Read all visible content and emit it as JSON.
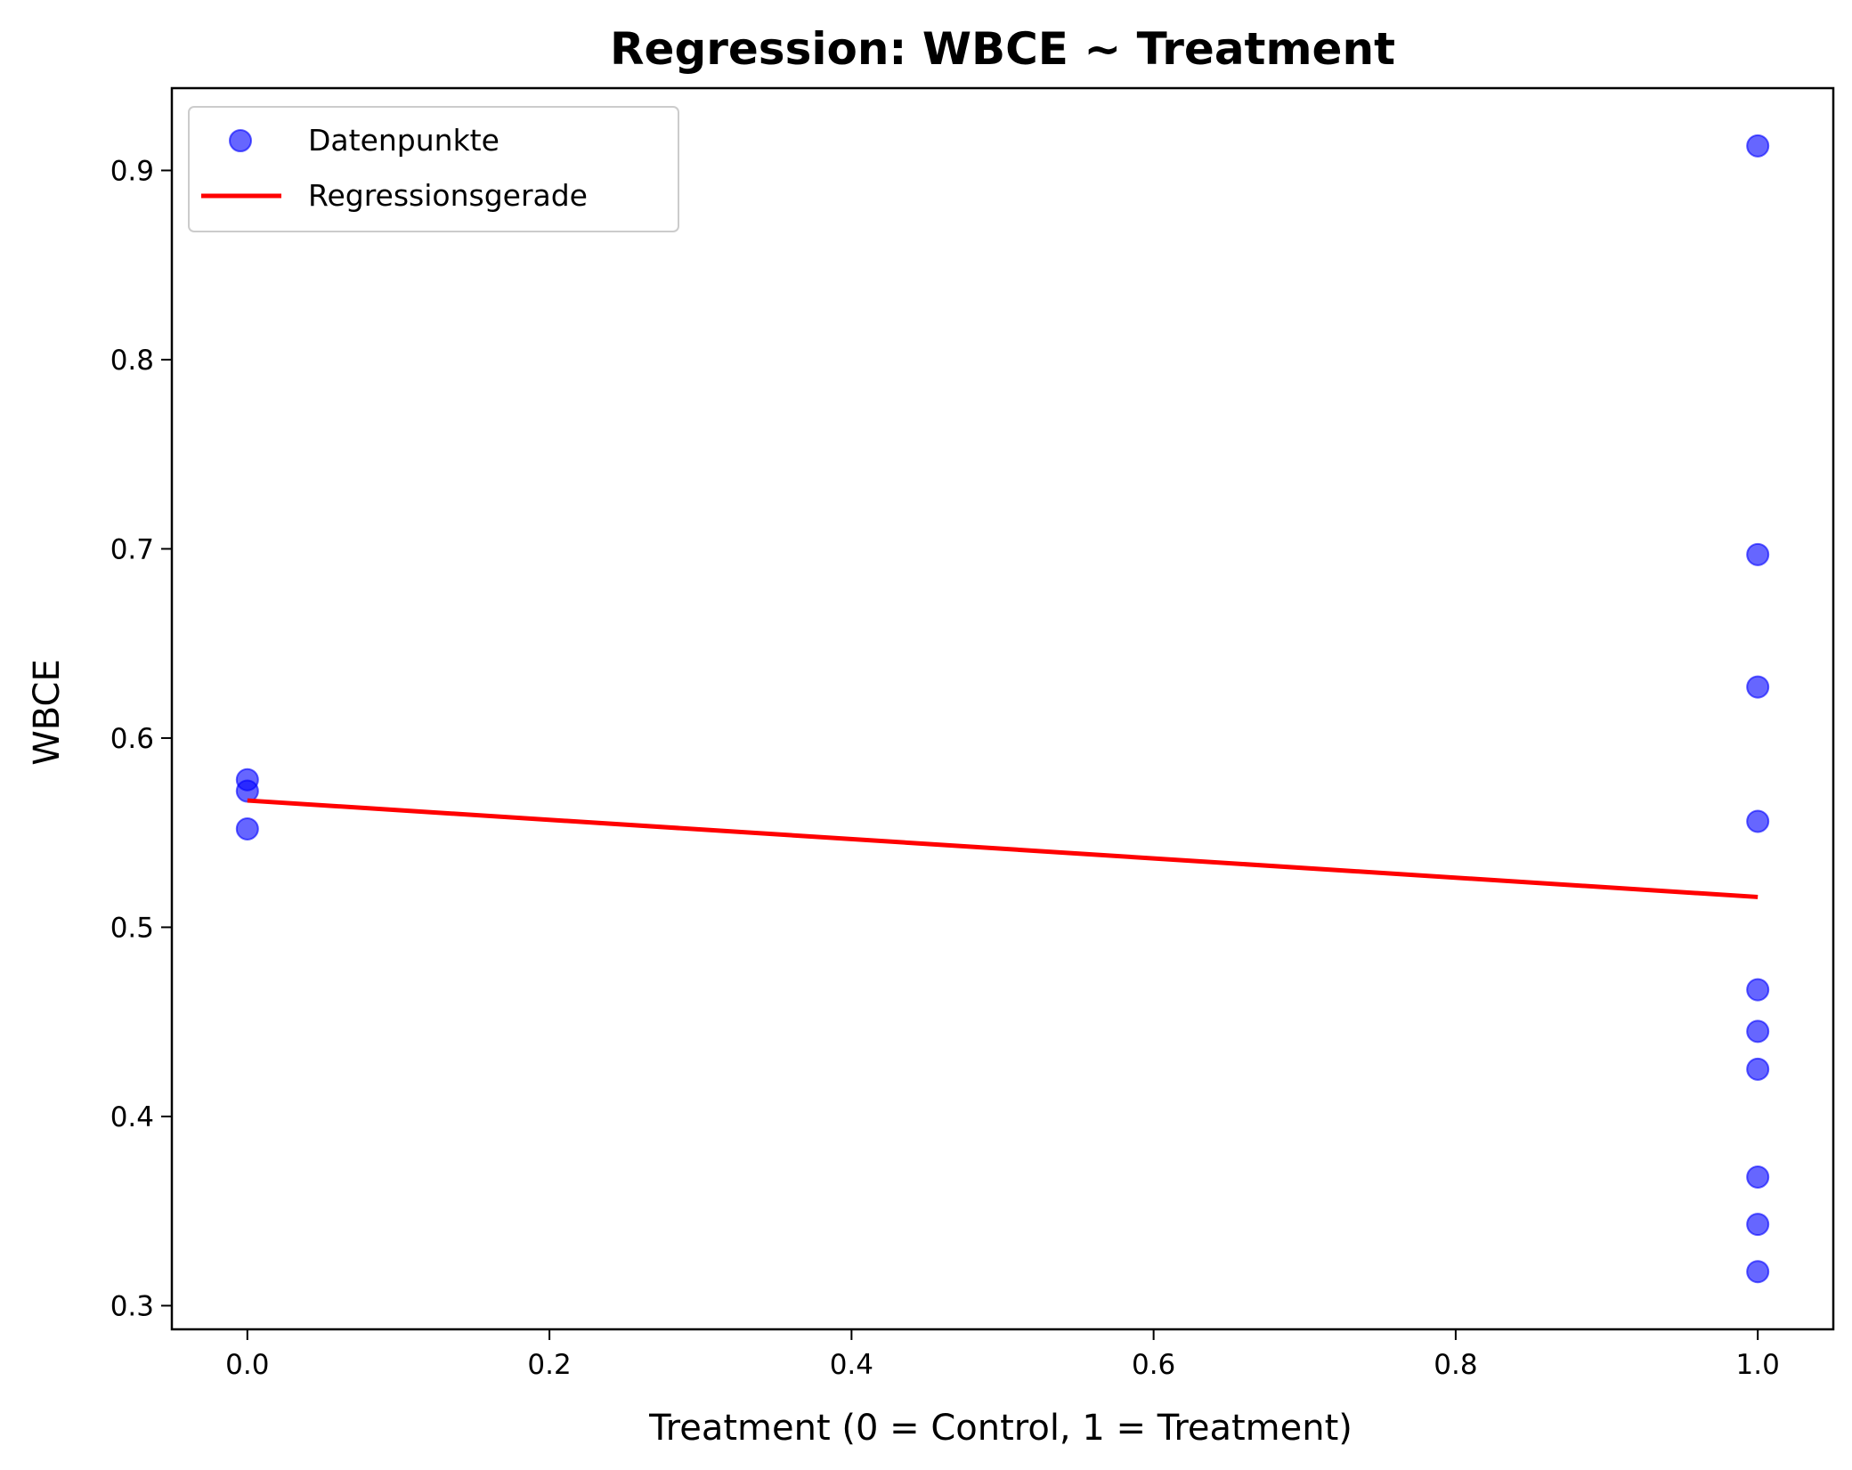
{
  "chart_data": {
    "type": "scatter",
    "title": "Regression: WBCE ~ Treatment",
    "xlabel": "Treatment (0 = Control, 1 = Treatment)",
    "ylabel": "WBCE",
    "xlim": [
      -0.05,
      1.05
    ],
    "ylim": [
      0.2875,
      0.9435
    ],
    "x_ticks": [
      "0.0",
      "0.2",
      "0.4",
      "0.6",
      "0.8",
      "1.0"
    ],
    "x_tick_values": [
      0.0,
      0.2,
      0.4,
      0.6,
      0.8,
      1.0
    ],
    "y_ticks": [
      "0.3",
      "0.4",
      "0.5",
      "0.6",
      "0.7",
      "0.8",
      "0.9"
    ],
    "y_tick_values": [
      0.3,
      0.4,
      0.5,
      0.6,
      0.7,
      0.8,
      0.9
    ],
    "grid": false,
    "legend_position": "upper-left",
    "series": [
      {
        "name": "Datenpunkte",
        "kind": "scatter",
        "color": "#0000ff",
        "points": [
          {
            "x": 0,
            "y": 0.578
          },
          {
            "x": 0,
            "y": 0.572
          },
          {
            "x": 0,
            "y": 0.552
          },
          {
            "x": 1,
            "y": 0.913
          },
          {
            "x": 1,
            "y": 0.697
          },
          {
            "x": 1,
            "y": 0.627
          },
          {
            "x": 1,
            "y": 0.556
          },
          {
            "x": 1,
            "y": 0.467
          },
          {
            "x": 1,
            "y": 0.445
          },
          {
            "x": 1,
            "y": 0.425
          },
          {
            "x": 1,
            "y": 0.368
          },
          {
            "x": 1,
            "y": 0.343
          },
          {
            "x": 1,
            "y": 0.318
          }
        ]
      },
      {
        "name": "Regressionsgerade",
        "kind": "line",
        "color": "#ff0000",
        "points": [
          {
            "x": 0,
            "y": 0.567
          },
          {
            "x": 1,
            "y": 0.516
          }
        ]
      }
    ]
  }
}
